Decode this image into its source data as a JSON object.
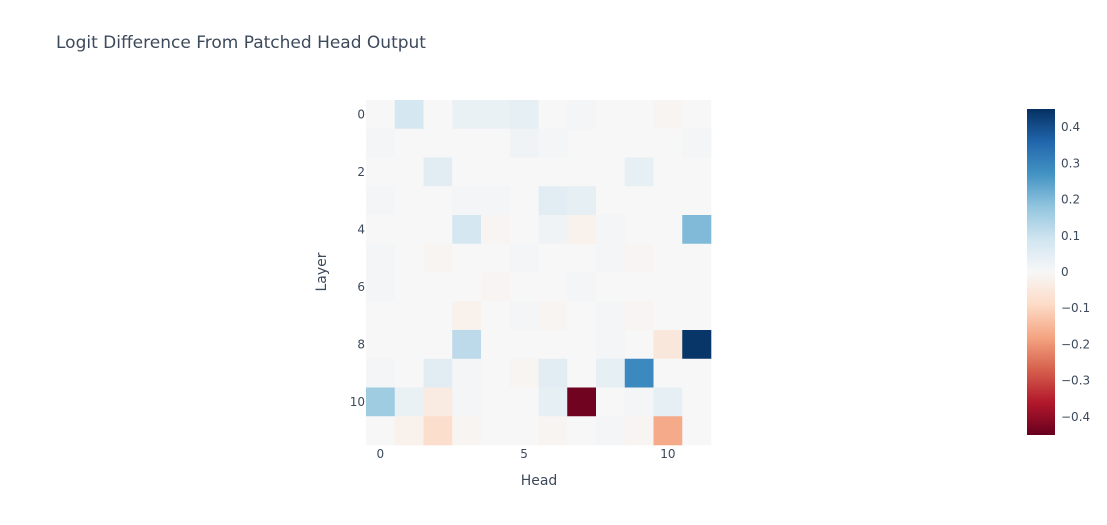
{
  "chart_data": {
    "type": "heatmap",
    "title": "Logit Difference From Patched Head Output",
    "xlabel": "Head",
    "ylabel": "Layer",
    "x_tick_labels": [
      "0",
      "5",
      "10"
    ],
    "x_tick_values": [
      0,
      5,
      10
    ],
    "y_tick_labels": [
      "0",
      "2",
      "4",
      "6",
      "8",
      "10"
    ],
    "y_tick_values": [
      0,
      2,
      4,
      6,
      8,
      10
    ],
    "colorscale": "RdBu",
    "zmin": -0.45,
    "zmax": 0.45,
    "colorbar_tick_labels": [
      "0.4",
      "0.3",
      "0.2",
      "0.1",
      "0",
      "−0.1",
      "−0.2",
      "−0.3",
      "−0.4"
    ],
    "colorbar_tick_values": [
      0.4,
      0.3,
      0.2,
      0.1,
      0,
      -0.1,
      -0.2,
      -0.3,
      -0.4
    ],
    "layers": 12,
    "heads": 12,
    "z": [
      [
        0.0,
        0.08,
        0.0,
        0.03,
        0.03,
        0.04,
        0.0,
        0.01,
        0.0,
        0.0,
        -0.01,
        0.0
      ],
      [
        0.01,
        0.0,
        0.0,
        0.0,
        0.0,
        0.02,
        0.01,
        0.0,
        0.0,
        0.0,
        0.0,
        0.01
      ],
      [
        0.0,
        0.0,
        0.05,
        0.0,
        0.0,
        0.0,
        0.0,
        0.0,
        0.0,
        0.04,
        0.0,
        0.0
      ],
      [
        0.01,
        0.0,
        0.0,
        0.01,
        0.01,
        0.0,
        0.05,
        0.04,
        0.0,
        0.0,
        0.0,
        0.0
      ],
      [
        0.0,
        0.0,
        0.0,
        0.08,
        -0.01,
        0.0,
        0.02,
        -0.02,
        0.01,
        0.0,
        0.0,
        0.2
      ],
      [
        0.01,
        0.0,
        -0.01,
        0.0,
        0.0,
        0.01,
        0.0,
        0.0,
        0.01,
        -0.01,
        0.0,
        0.0
      ],
      [
        0.01,
        0.0,
        0.0,
        0.0,
        -0.01,
        0.0,
        0.0,
        0.01,
        0.0,
        0.0,
        0.0,
        0.0
      ],
      [
        0.0,
        0.0,
        0.0,
        -0.02,
        0.0,
        0.01,
        -0.01,
        0.0,
        0.01,
        -0.01,
        0.0,
        0.0
      ],
      [
        0.0,
        0.0,
        0.0,
        0.12,
        0.0,
        0.0,
        0.0,
        0.0,
        0.01,
        0.0,
        -0.05,
        0.44
      ],
      [
        0.01,
        0.0,
        0.05,
        0.01,
        0.0,
        -0.01,
        0.05,
        0.0,
        0.04,
        0.29,
        0.0,
        0.0
      ],
      [
        0.16,
        0.03,
        -0.04,
        0.01,
        0.0,
        0.0,
        0.04,
        -0.44,
        0.0,
        0.01,
        0.04,
        0.0
      ],
      [
        0.0,
        -0.02,
        -0.08,
        -0.01,
        0.0,
        0.0,
        -0.01,
        0.0,
        0.01,
        -0.01,
        -0.17,
        0.0
      ]
    ]
  }
}
